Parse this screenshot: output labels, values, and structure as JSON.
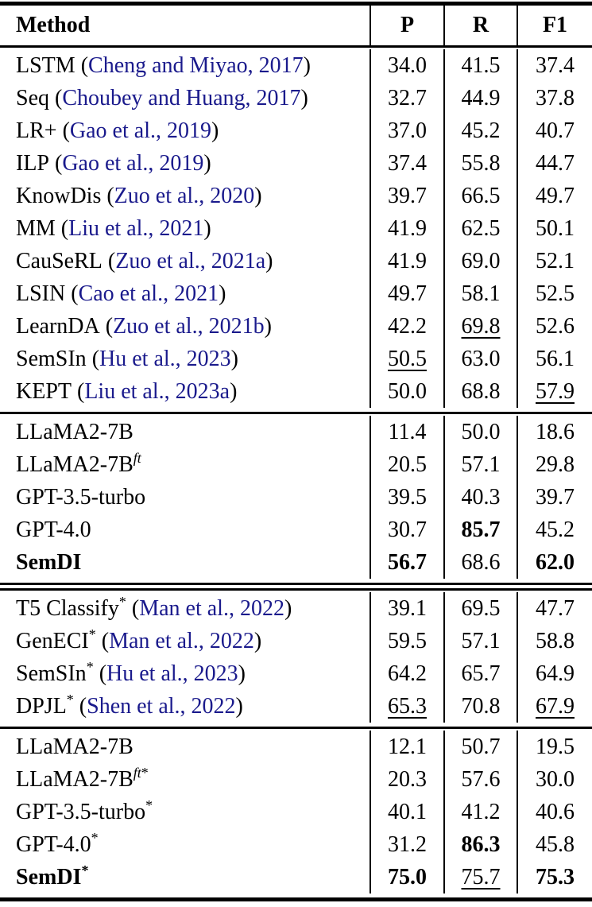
{
  "columns": {
    "method": "Method",
    "p": "P",
    "r": "R",
    "f1": "F1"
  },
  "marks": {
    "open": "(",
    "close": ")"
  },
  "colors": {
    "citation": "#1a1a8c",
    "rule": "#000000",
    "text": "#000000",
    "background": "#ffffff"
  },
  "dividers": [
    "single",
    "double",
    "single"
  ],
  "sections": [
    {
      "rows": [
        {
          "name": "LSTM",
          "cite": "Cheng and Miyao, 2017",
          "cells": [
            {
              "v": "34.0"
            },
            {
              "v": "41.5"
            },
            {
              "v": "37.4"
            }
          ]
        },
        {
          "name": "Seq",
          "cite": "Choubey and Huang, 2017",
          "cells": [
            {
              "v": "32.7"
            },
            {
              "v": "44.9"
            },
            {
              "v": "37.8"
            }
          ]
        },
        {
          "name": "LR+",
          "cite": "Gao et al., 2019",
          "cells": [
            {
              "v": "37.0"
            },
            {
              "v": "45.2"
            },
            {
              "v": "40.7"
            }
          ]
        },
        {
          "name": "ILP",
          "cite": "Gao et al., 2019",
          "cells": [
            {
              "v": "37.4"
            },
            {
              "v": "55.8"
            },
            {
              "v": "44.7"
            }
          ]
        },
        {
          "name": "KnowDis",
          "cite": "Zuo et al., 2020",
          "cells": [
            {
              "v": "39.7"
            },
            {
              "v": "66.5"
            },
            {
              "v": "49.7"
            }
          ]
        },
        {
          "name": "MM",
          "cite": "Liu et al., 2021",
          "cells": [
            {
              "v": "41.9"
            },
            {
              "v": "62.5"
            },
            {
              "v": "50.1"
            }
          ]
        },
        {
          "name": "CauSeRL",
          "cite": "Zuo et al., 2021a",
          "cells": [
            {
              "v": "41.9"
            },
            {
              "v": "69.0"
            },
            {
              "v": "52.1"
            }
          ]
        },
        {
          "name": "LSIN",
          "cite": "Cao et al., 2021",
          "cells": [
            {
              "v": "49.7"
            },
            {
              "v": "58.1"
            },
            {
              "v": "52.5"
            }
          ]
        },
        {
          "name": "LearnDA",
          "cite": "Zuo et al., 2021b",
          "cells": [
            {
              "v": "42.2"
            },
            {
              "v": "69.8",
              "u": true
            },
            {
              "v": "52.6"
            }
          ]
        },
        {
          "name": "SemSIn",
          "cite": "Hu et al., 2023",
          "cells": [
            {
              "v": "50.5",
              "u": true
            },
            {
              "v": "63.0"
            },
            {
              "v": "56.1"
            }
          ]
        },
        {
          "name": "KEPT",
          "cite": "Liu et al., 2023a",
          "cells": [
            {
              "v": "50.0"
            },
            {
              "v": "68.8"
            },
            {
              "v": "57.9",
              "u": true
            }
          ]
        }
      ]
    },
    {
      "rows": [
        {
          "name": "LLaMA2-7B",
          "cells": [
            {
              "v": "11.4"
            },
            {
              "v": "50.0"
            },
            {
              "v": "18.6"
            }
          ]
        },
        {
          "name": "LLaMA2-7B",
          "sup_it": "ft",
          "cells": [
            {
              "v": "20.5"
            },
            {
              "v": "57.1"
            },
            {
              "v": "29.8"
            }
          ]
        },
        {
          "name": "GPT-3.5-turbo",
          "cells": [
            {
              "v": "39.5"
            },
            {
              "v": "40.3"
            },
            {
              "v": "39.7"
            }
          ]
        },
        {
          "name": "GPT-4.0",
          "cells": [
            {
              "v": "30.7"
            },
            {
              "v": "85.7",
              "b": true
            },
            {
              "v": "45.2"
            }
          ]
        },
        {
          "name": "SemDI",
          "bold": true,
          "cells": [
            {
              "v": "56.7",
              "b": true
            },
            {
              "v": "68.6"
            },
            {
              "v": "62.0",
              "b": true
            }
          ]
        }
      ]
    },
    {
      "rows": [
        {
          "name": "T5 Classify",
          "sup_star": "*",
          "cite": "Man et al., 2022",
          "cells": [
            {
              "v": "39.1"
            },
            {
              "v": "69.5"
            },
            {
              "v": "47.7"
            }
          ]
        },
        {
          "name": "GenECI",
          "sup_star": "*",
          "cite": "Man et al., 2022",
          "cells": [
            {
              "v": "59.5"
            },
            {
              "v": "57.1"
            },
            {
              "v": "58.8"
            }
          ]
        },
        {
          "name": "SemSIn",
          "sup_star": "*",
          "cite": "Hu et al., 2023",
          "cells": [
            {
              "v": "64.2"
            },
            {
              "v": "65.7"
            },
            {
              "v": "64.9"
            }
          ]
        },
        {
          "name": "DPJL",
          "sup_star": "*",
          "cite": "Shen et al., 2022",
          "cells": [
            {
              "v": "65.3",
              "u": true
            },
            {
              "v": "70.8"
            },
            {
              "v": "67.9",
              "u": true
            }
          ]
        }
      ]
    },
    {
      "rows": [
        {
          "name": "LLaMA2-7B",
          "cells": [
            {
              "v": "12.1"
            },
            {
              "v": "50.7"
            },
            {
              "v": "19.5"
            }
          ]
        },
        {
          "name": "LLaMA2-7B",
          "sup_it": "ft",
          "sup_star": "*",
          "cells": [
            {
              "v": "20.3"
            },
            {
              "v": "57.6"
            },
            {
              "v": "30.0"
            }
          ]
        },
        {
          "name": "GPT-3.5-turbo",
          "sup_star": "*",
          "cells": [
            {
              "v": "40.1"
            },
            {
              "v": "41.2"
            },
            {
              "v": "40.6"
            }
          ]
        },
        {
          "name": "GPT-4.0",
          "sup_star": "*",
          "cells": [
            {
              "v": "31.2"
            },
            {
              "v": "86.3",
              "b": true
            },
            {
              "v": "45.8"
            }
          ]
        },
        {
          "name": "SemDI",
          "sup_star": "*",
          "bold": true,
          "cells": [
            {
              "v": "75.0",
              "b": true
            },
            {
              "v": "75.7",
              "u": true
            },
            {
              "v": "75.3",
              "b": true
            }
          ]
        }
      ]
    }
  ]
}
